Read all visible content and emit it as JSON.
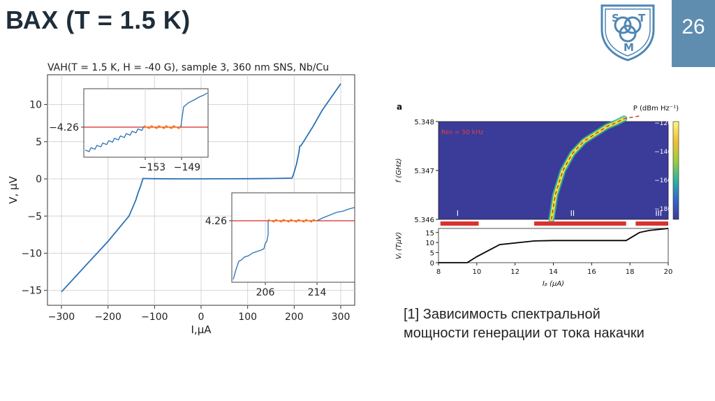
{
  "slide": {
    "title": "ВАХ (T = 1.5 K)",
    "page_number": "26",
    "logo_letters": [
      "S",
      "T",
      "M"
    ],
    "caption_lines": [
      "[1] Зависимость спектральной",
      "мощности генерации от тока накачки"
    ]
  },
  "colors": {
    "badge": "#5f8db0",
    "curve": "#2a72b5",
    "ref_line": "#d62728",
    "noise": "#ff7f0e",
    "heat_bg": "#3b3b9a"
  },
  "chart_data": [
    {
      "type": "line",
      "title": "VAH(T = 1.5 K, H = -40 G), sample 3, 360 nm SNS, Nb/Cu",
      "xlabel": "I,μA",
      "ylabel": "V, μV",
      "xlim": [
        -330,
        330
      ],
      "ylim": [
        -17,
        14
      ],
      "xticks": [
        -300,
        -200,
        -100,
        0,
        100,
        200,
        300
      ],
      "xtick_labels": [
        "−300",
        "−200",
        "−100",
        "0",
        "100",
        "200",
        "300"
      ],
      "yticks": [
        10,
        5,
        0,
        -5,
        -10,
        -15
      ],
      "ytick_labels": [
        "10",
        "5",
        "0",
        "−5",
        "−10",
        "−15"
      ],
      "grid": true,
      "series": [
        {
          "name": "VAH",
          "x": [
            -300,
            -250,
            -200,
            -155,
            -150,
            -140,
            -135,
            -130,
            -125,
            -100,
            -50,
            0,
            50,
            100,
            150,
            195,
            198,
            205,
            210,
            212,
            215,
            220,
            240,
            260,
            280,
            300
          ],
          "y": [
            -15.2,
            -11.8,
            -8.4,
            -5.0,
            -4.3,
            -2.8,
            -1.8,
            -1.0,
            0.05,
            0.02,
            0.0,
            0.0,
            0.01,
            0.02,
            0.05,
            0.1,
            0.5,
            2.0,
            3.5,
            4.4,
            4.5,
            5.0,
            7.0,
            9.2,
            11.0,
            12.8
          ]
        }
      ],
      "insets": [
        {
          "position": "upper-left",
          "ref_label": "−4.26",
          "ref_value": -4.26,
          "xtick_labels": [
            "−153",
            "−149"
          ]
        },
        {
          "position": "lower-right",
          "ref_label": "4.26",
          "ref_value": 4.26,
          "xtick_labels": [
            "206",
            "214"
          ]
        }
      ]
    },
    {
      "type": "heatmap",
      "panel_label": "a",
      "annotation": "Res = 50 kHz",
      "colorbar_label": "P (dBm Hz⁻¹)",
      "colorbar_ticks": [
        "−120",
        "−140",
        "−160",
        "−180"
      ],
      "ylabel": "f (GHz)",
      "yticks": [
        "5.348",
        "5.347",
        "5.346"
      ],
      "ylim": [
        5.346,
        5.348
      ],
      "xlim": [
        8,
        20
      ],
      "regions": [
        "I",
        "II",
        "III"
      ],
      "ridge": {
        "x": [
          13.9,
          14.1,
          14.5,
          15.0,
          15.6,
          16.2,
          16.8,
          17.3,
          17.7
        ],
        "y": [
          5.346,
          5.3465,
          5.347,
          5.34735,
          5.3476,
          5.34775,
          5.3479,
          5.34798,
          5.34806
        ]
      }
    },
    {
      "type": "line",
      "ylabel": "Vⱼ (TμV)",
      "xlabel": "Iᵦ (μA)",
      "xticks": [
        "8",
        "10",
        "12",
        "14",
        "16",
        "18",
        "20"
      ],
      "yticks": [
        "15",
        "10",
        "5",
        "0"
      ],
      "xlim": [
        8,
        20
      ],
      "ylim": [
        0,
        17
      ],
      "series": [
        {
          "name": "Vj",
          "x": [
            8,
            9.5,
            10.0,
            11.2,
            13.0,
            14.0,
            15.0,
            16.0,
            17.0,
            17.8,
            18.5,
            19.0,
            20.0
          ],
          "y": [
            0,
            0,
            3.0,
            9.0,
            10.8,
            11.0,
            11.0,
            11.0,
            11.0,
            11.0,
            15.0,
            16.0,
            17.0
          ]
        }
      ],
      "bars": [
        [
          8.1,
          10.1
        ],
        [
          13.0,
          17.8
        ],
        [
          18.3,
          20.0
        ]
      ]
    }
  ]
}
